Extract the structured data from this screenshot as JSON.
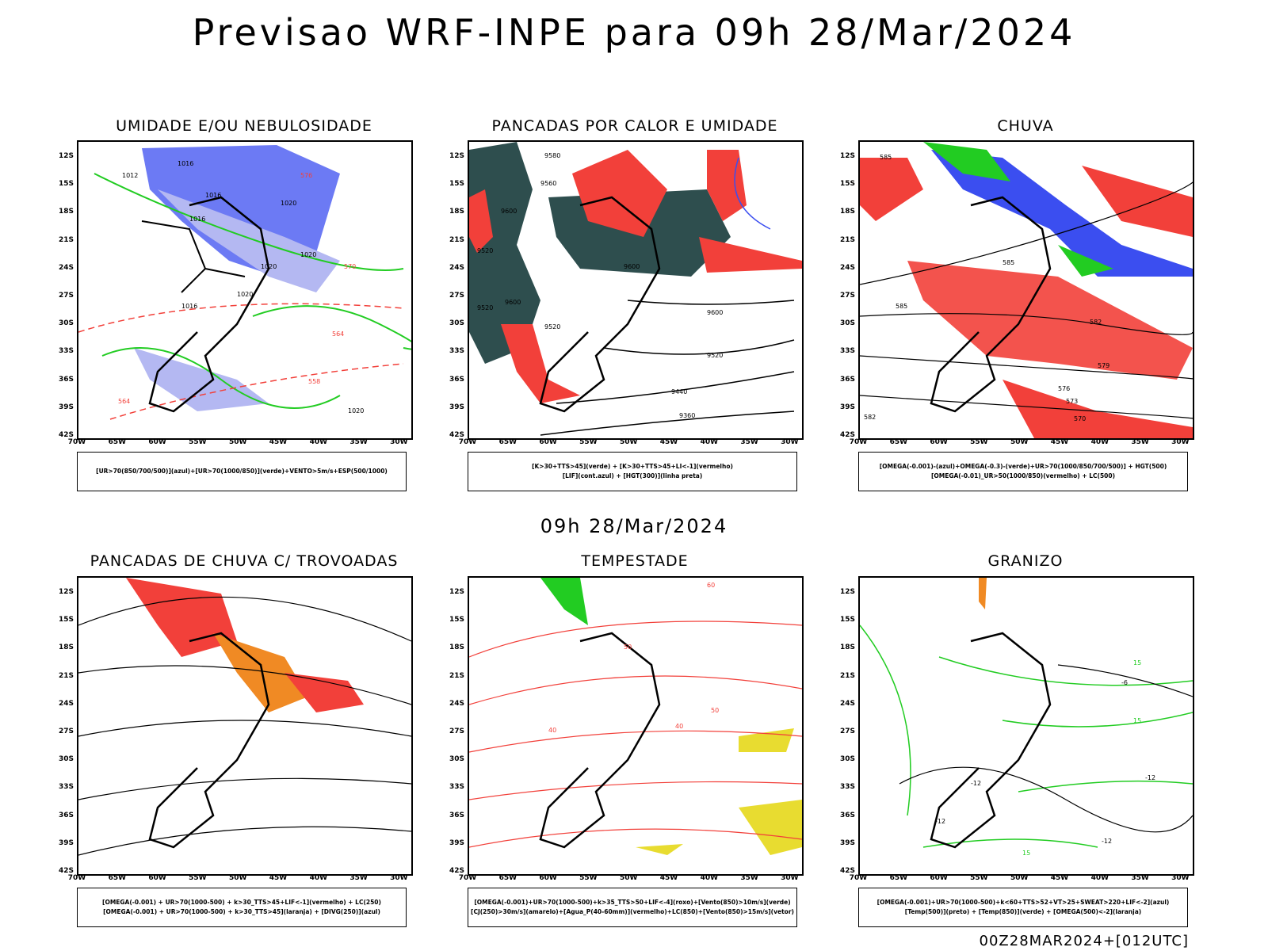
{
  "header": {
    "title": "Previsao WRF-INPE  para 09h 28/Mar/2024"
  },
  "middle": {
    "title": "09h 28/Mar/2024"
  },
  "footer": {
    "run": "00Z28MAR2024+[012UTC]"
  },
  "axes": {
    "lat_labels": [
      "12S",
      "15S",
      "18S",
      "21S",
      "24S",
      "27S",
      "30S",
      "33S",
      "36S",
      "39S",
      "42S"
    ],
    "lon_labels": [
      "70W",
      "65W",
      "60W",
      "55W",
      "50W",
      "45W",
      "40W",
      "35W",
      "30W"
    ]
  },
  "panels": [
    {
      "title": "UMIDADE E/OU NEBULOSIDADE",
      "legend": [
        "[UR>70(850/700/500)](azul)+[UR>70(1000/850)](verde)+VENTO>5m/s+ESP(500/1000)"
      ],
      "contour_labels": [
        "1016",
        "1012",
        "1016",
        "1016",
        "1020",
        "1020",
        "1020",
        "1016",
        "1020",
        "1020",
        "576",
        "570",
        "564",
        "558",
        "564"
      ]
    },
    {
      "title": "PANCADAS POR CALOR E UMIDADE",
      "legend": [
        "[K>30+TTS>45](verde) + [K>30+TTS>45+LI<-1](vermelho)",
        "[LIF](cont.azul) + [HGT(300)](linha preta)"
      ],
      "contour_labels": [
        "9580",
        "9560",
        "9600",
        "9520",
        "9600",
        "9600",
        "9520",
        "9600",
        "9520",
        "9440",
        "9360",
        "9520"
      ]
    },
    {
      "title": "CHUVA",
      "legend": [
        "[OMEGA(-0.001)-(azul)+OMEGA(-0.3)-(verde)+UR>70(1000/850/700/500)] + HGT(500)",
        "[OMEGA(-0.01)_UR>50(1000/850)(vermelho) + LC(500)"
      ],
      "contour_labels": [
        "585",
        "585",
        "585",
        "582",
        "579",
        "576",
        "573",
        "570",
        "582"
      ]
    },
    {
      "title": "PANCADAS DE CHUVA C/ TROVOADAS",
      "legend": [
        "[OMEGA(-0.001) + UR>70(1000-500) + k>30_TTS>45+LIF<-1](vermelho) + LC(250)",
        "[OMEGA(-0.001) + UR>70(1000-500) + k>30_TTS>45](laranja) + [DIVG(250)](azul)"
      ],
      "contour_labels": []
    },
    {
      "title": "TEMPESTADE",
      "legend": [
        "[OMEGA(-0.001)+UR>70(1000-500)+k>35_TTS>50+LIF<-4](roxo)+[Vento(850)>10m/s](verde)",
        "[CJ(250)>30m/s](amarelo)+[Agua_P(40-60mm)](vermelho)+LC(850)+[Vento(850)>15m/s](vetor)"
      ],
      "contour_labels": [
        "60",
        "50",
        "40",
        "50",
        "40"
      ]
    },
    {
      "title": "GRANIZO",
      "legend": [
        "[OMEGA(-0.001)+UR>70(1000-500)+k<60+TTS>52+VT>25+SWEAT>220+LIF<-2](azul)",
        "[Temp(500)](preto) + [Temp(850)](verde) + [OMEGA(500)<-2](laranja)"
      ],
      "contour_labels": [
        "-6",
        "15",
        "15",
        "-12",
        "-12",
        "-12",
        "-12",
        "15"
      ]
    }
  ],
  "colors": {
    "blue": "#3b4ef0",
    "lightblue": "#b4b8f2",
    "green": "#22cc22",
    "red": "#f2403a",
    "orange": "#f08a24",
    "teal": "#2e4e4e",
    "yellow": "#e8dc30",
    "purple": "#b030c0"
  }
}
